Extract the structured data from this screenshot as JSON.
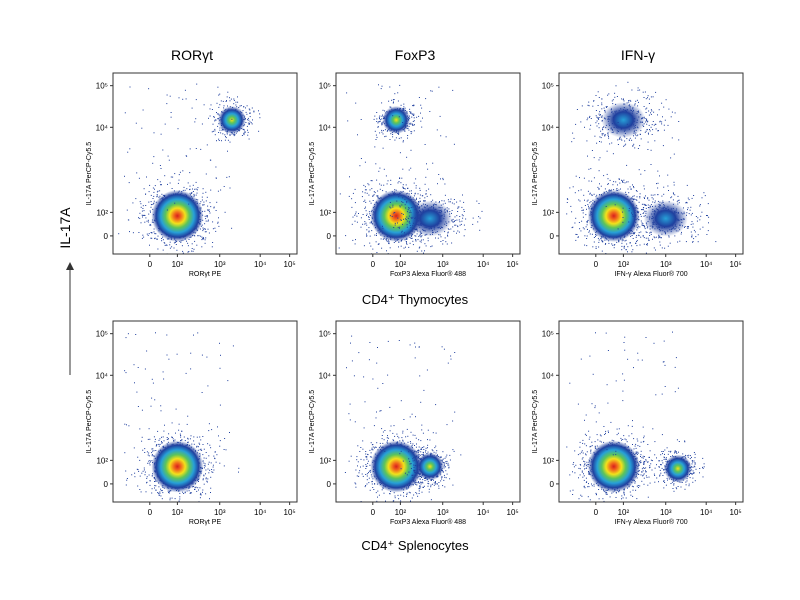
{
  "figure": {
    "y_axis_group_label": "IL-17A",
    "row_labels": [
      "CD4⁺ Thymocytes",
      "CD4⁺ Splenocytes"
    ],
    "column_titles": [
      "RORγt",
      "FoxP3",
      "IFN-γ"
    ]
  },
  "colors": {
    "density_low": "#1f3f9e",
    "density_mid_low": "#27a0d8",
    "density_mid": "#5cc45a",
    "density_mid_high": "#f3e21b",
    "density_high": "#f26c1c",
    "density_peak": "#d71e1e",
    "frame": "#333333"
  },
  "chart_data": [
    {
      "type": "scatter",
      "title": "RORγt",
      "xlabel": "RORγt PE",
      "ylabel": "IL-17A PerCP-Cy5.5",
      "x_scale": "biexponential",
      "y_scale": "biexponential",
      "xticks": [
        "0",
        "10²",
        "10³",
        "10⁴",
        "10⁵"
      ],
      "yticks": [
        "0",
        "10²",
        "10⁴",
        "10⁵"
      ],
      "populations": [
        {
          "name": "",
          "x_center": 100,
          "y_center": 50,
          "density": "high"
        },
        {
          "name": "",
          "x_center": 2000,
          "y_center": 15000,
          "density": "medium"
        }
      ]
    },
    {
      "type": "scatter",
      "title": "FoxP3",
      "xlabel": "FoxP3 Alexa Fluor® 488",
      "ylabel": "IL-17A PerCP-Cy5.5",
      "x_scale": "biexponential",
      "y_scale": "biexponential",
      "xticks": [
        "0",
        "10²",
        "10³",
        "10⁴",
        "10⁵"
      ],
      "yticks": [
        "0",
        "10²",
        "10⁴",
        "10⁵"
      ],
      "populations": [
        {
          "name": "",
          "x_center": 50,
          "y_center": 50,
          "density": "high"
        },
        {
          "name": "",
          "x_center": 50,
          "y_center": 15000,
          "density": "medium"
        },
        {
          "name": "",
          "x_center": 500,
          "y_center": 30,
          "density": "low"
        }
      ]
    },
    {
      "type": "scatter",
      "title": "IFN-γ",
      "xlabel": "IFN-γ Alexa Fluor® 700",
      "ylabel": "IL-17A PerCP-Cy5.5",
      "x_scale": "biexponential",
      "y_scale": "biexponential",
      "xticks": [
        "0",
        "10²",
        "10³",
        "10⁴",
        "10⁵"
      ],
      "yticks": [
        "0",
        "10²",
        "10⁴",
        "10⁵"
      ],
      "populations": [
        {
          "name": "",
          "x_center": 20,
          "y_center": 50,
          "density": "high"
        },
        {
          "name": "",
          "x_center": 100,
          "y_center": 15000,
          "density": "low"
        },
        {
          "name": "",
          "x_center": 1000,
          "y_center": 30,
          "density": "low"
        }
      ]
    },
    {
      "type": "scatter",
      "title": "",
      "xlabel": "RORγt PE",
      "ylabel": "IL-17A PerCP-Cy5.5",
      "x_scale": "biexponential",
      "y_scale": "biexponential",
      "xticks": [
        "0",
        "10²",
        "10³",
        "10⁴",
        "10⁵"
      ],
      "yticks": [
        "0",
        "10²",
        "10⁴",
        "10⁵"
      ],
      "populations": [
        {
          "name": "",
          "x_center": 100,
          "y_center": 30,
          "density": "high"
        }
      ]
    },
    {
      "type": "scatter",
      "title": "",
      "xlabel": "FoxP3 Alexa Fluor® 488",
      "ylabel": "IL-17A PerCP-Cy5.5",
      "x_scale": "biexponential",
      "y_scale": "biexponential",
      "xticks": [
        "0",
        "10²",
        "10³",
        "10⁴",
        "10⁵"
      ],
      "yticks": [
        "0",
        "10²",
        "10⁴",
        "10⁵"
      ],
      "populations": [
        {
          "name": "",
          "x_center": 50,
          "y_center": 30,
          "density": "high"
        },
        {
          "name": "",
          "x_center": 500,
          "y_center": 30,
          "density": "medium"
        }
      ]
    },
    {
      "type": "scatter",
      "title": "",
      "xlabel": "IFN-γ Alexa Fluor® 700",
      "ylabel": "IL-17A PerCP-Cy5.5",
      "x_scale": "biexponential",
      "y_scale": "biexponential",
      "xticks": [
        "0",
        "10²",
        "10³",
        "10⁴",
        "10⁵"
      ],
      "yticks": [
        "0",
        "10²",
        "10⁴",
        "10⁵"
      ],
      "populations": [
        {
          "name": "",
          "x_center": 20,
          "y_center": 30,
          "density": "high"
        },
        {
          "name": "",
          "x_center": 2000,
          "y_center": 20,
          "density": "medium"
        }
      ]
    }
  ]
}
